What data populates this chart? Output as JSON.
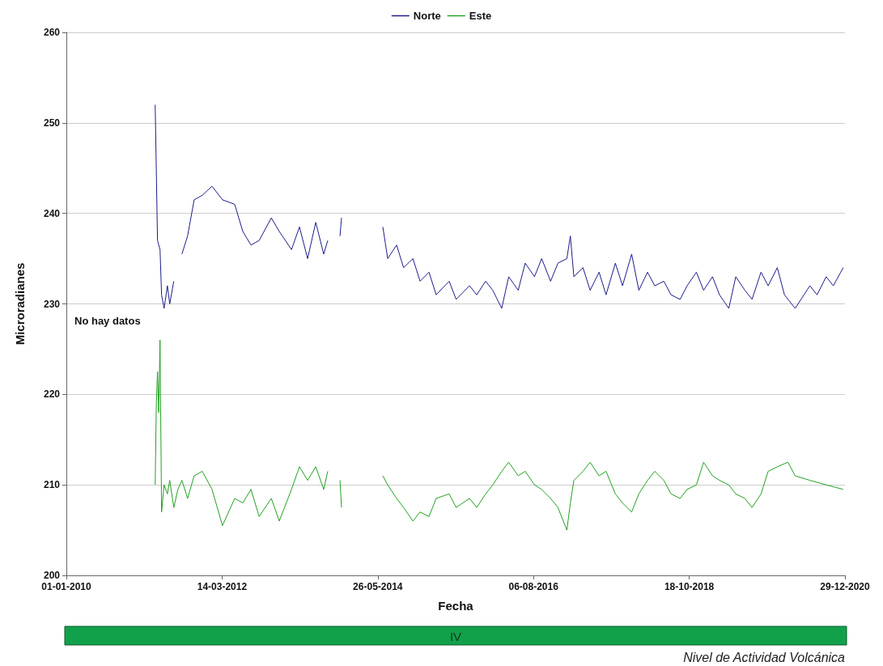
{
  "chart_data": {
    "type": "line",
    "xlabel": "Fecha",
    "ylabel": "Microradianes",
    "legend": "top",
    "grid": "y",
    "marker": "none",
    "line_style": "solid",
    "xlim": [
      "2010-01-01",
      "2020-12-29"
    ],
    "xticks": [
      {
        "value": "2010-01-01",
        "label": "01-01-2010"
      },
      {
        "value": "2012-03-14",
        "label": "14-03-2012"
      },
      {
        "value": "2014-05-26",
        "label": "26-05-2014"
      },
      {
        "value": "2016-08-06",
        "label": "06-08-2016"
      },
      {
        "value": "2018-10-18",
        "label": "18-10-2018"
      },
      {
        "value": "2020-12-29",
        "label": "29-12-2020"
      }
    ],
    "ylim": [
      200,
      260
    ],
    "yticks": [
      200,
      210,
      220,
      230,
      240,
      250,
      260
    ],
    "annotations": [
      "No hay datos",
      "IV",
      "Nivel de Actividad Volcánica"
    ],
    "series": [
      {
        "name": "Norte",
        "color": "#1c1c8c",
        "x": [
          "2011-04-04",
          "2011-04-16",
          "2011-04-29",
          "2011-05-07",
          "2011-05-20",
          "2011-06-06",
          "2011-06-18",
          "2011-07-09",
          "2011-07-30",
          "2011-08-20",
          "2011-09-18",
          "2011-10-22",
          "2011-12-03",
          "2012-01-22",
          "2012-03-16",
          "2012-05-18",
          "2012-06-29",
          "2012-08-10",
          "2012-09-21",
          "2012-11-23",
          "2013-01-03",
          "2013-03-07",
          "2013-04-17",
          "2013-05-29",
          "2013-07-10",
          "2013-08-20",
          "2013-09-10",
          "2013-10-10",
          "2013-11-12",
          "2013-11-20",
          "2014-02-01",
          "2014-06-21",
          "2014-07-16",
          "2014-08-31",
          "2014-10-06",
          "2014-11-23",
          "2014-12-30",
          "2015-02-14",
          "2015-03-23",
          "2015-05-29",
          "2015-07-04",
          "2015-09-11",
          "2015-10-18",
          "2015-12-03",
          "2016-01-09",
          "2016-02-24",
          "2016-03-31",
          "2016-05-19",
          "2016-06-24",
          "2016-08-11",
          "2016-09-17",
          "2016-11-02",
          "2016-12-10",
          "2017-01-25",
          "2017-02-12",
          "2017-03-02",
          "2017-04-18",
          "2017-05-25",
          "2017-07-10",
          "2017-08-15",
          "2017-10-02",
          "2017-11-08",
          "2017-12-25",
          "2018-01-31",
          "2018-03-17",
          "2018-04-23",
          "2018-06-09",
          "2018-07-16",
          "2018-09-01",
          "2018-10-07",
          "2018-11-24",
          "2018-12-31",
          "2019-02-15",
          "2019-03-23",
          "2019-05-10",
          "2019-06-15",
          "2019-08-01",
          "2019-09-07",
          "2019-10-23",
          "2019-11-29",
          "2020-01-15",
          "2020-02-21",
          "2020-04-16",
          "2020-07-01",
          "2020-08-07",
          "2020-09-23",
          "2020-10-30",
          "2020-12-20"
        ],
        "values": [
          252,
          237,
          236,
          231,
          229.5,
          232,
          230,
          232.5,
          null,
          235.5,
          237.5,
          241.5,
          242,
          243,
          241.5,
          241,
          238,
          236.5,
          237,
          239.5,
          238,
          236,
          238.5,
          235,
          239,
          235.5,
          237,
          null,
          237.5,
          239.5,
          null,
          238.5,
          235,
          236.5,
          234,
          235,
          232.5,
          233.5,
          231,
          232.5,
          230.5,
          232,
          231,
          232.5,
          231.5,
          229.5,
          233,
          231.5,
          234.5,
          233,
          235,
          232.5,
          234.5,
          235,
          237.5,
          233,
          234,
          231.5,
          233.5,
          231,
          234.5,
          232,
          235.5,
          231.5,
          233.5,
          232,
          232.5,
          231,
          230.5,
          232,
          233.5,
          231.5,
          233,
          231,
          229.5,
          233,
          231.5,
          230.5,
          233.5,
          232,
          234,
          231,
          229.5,
          232,
          231,
          233,
          232,
          234
        ]
      },
      {
        "name": "Este",
        "color": "#22a022",
        "x": [
          "2011-04-04",
          "2011-04-10",
          "2011-04-16",
          "2011-04-22",
          "2011-04-29",
          "2011-05-07",
          "2011-05-20",
          "2011-06-06",
          "2011-06-18",
          "2011-07-09",
          "2011-07-30",
          "2011-08-20",
          "2011-09-18",
          "2011-10-22",
          "2011-12-03",
          "2012-01-22",
          "2012-03-16",
          "2012-05-18",
          "2012-06-29",
          "2012-08-10",
          "2012-09-21",
          "2012-11-23",
          "2013-01-03",
          "2013-03-07",
          "2013-04-17",
          "2013-05-29",
          "2013-07-10",
          "2013-08-20",
          "2013-09-10",
          "2013-10-10",
          "2013-11-12",
          "2013-11-20",
          "2014-02-01",
          "2014-06-21",
          "2014-07-16",
          "2014-08-31",
          "2014-10-06",
          "2014-11-23",
          "2014-12-30",
          "2015-02-14",
          "2015-03-23",
          "2015-05-29",
          "2015-07-04",
          "2015-09-11",
          "2015-10-18",
          "2015-12-03",
          "2016-01-09",
          "2016-02-24",
          "2016-03-31",
          "2016-05-19",
          "2016-06-24",
          "2016-08-11",
          "2016-09-17",
          "2016-11-02",
          "2016-12-10",
          "2017-01-25",
          "2017-02-12",
          "2017-03-02",
          "2017-04-18",
          "2017-05-25",
          "2017-07-10",
          "2017-08-15",
          "2017-10-02",
          "2017-11-08",
          "2017-12-25",
          "2018-01-31",
          "2018-03-17",
          "2018-04-23",
          "2018-06-09",
          "2018-07-16",
          "2018-09-01",
          "2018-10-07",
          "2018-11-24",
          "2018-12-31",
          "2019-02-15",
          "2019-03-23",
          "2019-05-10",
          "2019-06-15",
          "2019-08-01",
          "2019-09-07",
          "2019-10-23",
          "2019-11-29",
          "2020-01-15",
          "2020-03-10",
          "2020-04-16",
          "2020-07-01",
          "2020-09-23",
          "2020-12-20"
        ],
        "values": [
          210,
          219,
          222.5,
          218,
          226,
          207,
          210,
          209,
          210.5,
          207.5,
          209.5,
          210.5,
          208.5,
          211,
          211.5,
          209.5,
          205.5,
          208.5,
          208,
          209.5,
          206.5,
          208.5,
          206,
          209.5,
          212,
          210.5,
          212,
          209.5,
          211.5,
          null,
          210.5,
          207.5,
          null,
          211,
          210,
          208.5,
          207.5,
          206,
          207,
          206.5,
          208.5,
          209,
          207.5,
          208.5,
          207.5,
          209,
          210,
          211.5,
          212.5,
          211,
          211.5,
          210,
          209.5,
          208.5,
          207.5,
          205,
          208,
          210.5,
          211.5,
          212.5,
          211,
          211.5,
          209,
          208,
          207,
          209,
          210.5,
          211.5,
          210.5,
          209,
          208.5,
          209.5,
          210,
          212.5,
          211,
          210.5,
          210,
          209,
          208.5,
          207.5,
          209,
          211.5,
          212,
          212.5,
          211,
          210.5,
          210,
          209.5
        ]
      }
    ]
  }
}
